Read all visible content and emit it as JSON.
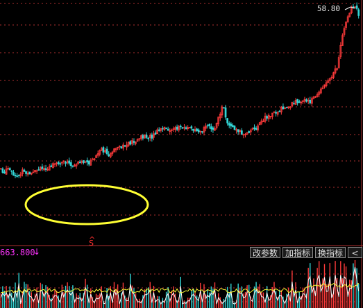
{
  "toolbar": {
    "volume_value": "663.800",
    "volume_indicator": "↓",
    "btn_params": "改参数",
    "btn_add_indicator": "加指标",
    "btn_switch_indicator": "换指标",
    "btn_more": "<"
  },
  "markers": {
    "high_price": "58.80",
    "signal_label": "S"
  },
  "colors": {
    "background": "#000000",
    "up_candle": "#ff3b3b",
    "down_candle": "#33d6d6",
    "grid": "#b03030",
    "highlight_ellipse": "#ffff33",
    "volume_ma_1": "#ffffff",
    "volume_ma_2": "#ffff33",
    "volume_label": "#ff33ff"
  },
  "chart_data": {
    "type": "candlestick",
    "price_max": 58.8,
    "annotation": "yellow ellipse highlighting consolidation base before breakout",
    "price_path": [
      [
        0,
        0.7
      ],
      [
        0.01,
        0.72
      ],
      [
        0.02,
        0.7
      ],
      [
        0.04,
        0.74
      ],
      [
        0.06,
        0.71
      ],
      [
        0.08,
        0.73
      ],
      [
        0.1,
        0.71
      ],
      [
        0.12,
        0.7
      ],
      [
        0.14,
        0.69
      ],
      [
        0.16,
        0.68
      ],
      [
        0.18,
        0.67
      ],
      [
        0.2,
        0.69
      ],
      [
        0.22,
        0.67
      ],
      [
        0.24,
        0.68
      ],
      [
        0.26,
        0.66
      ],
      [
        0.28,
        0.62
      ],
      [
        0.3,
        0.64
      ],
      [
        0.32,
        0.62
      ],
      [
        0.34,
        0.61
      ],
      [
        0.36,
        0.59
      ],
      [
        0.38,
        0.58
      ],
      [
        0.4,
        0.56
      ],
      [
        0.42,
        0.57
      ],
      [
        0.44,
        0.54
      ],
      [
        0.46,
        0.53
      ],
      [
        0.48,
        0.54
      ],
      [
        0.5,
        0.52
      ],
      [
        0.52,
        0.53
      ],
      [
        0.54,
        0.53
      ],
      [
        0.56,
        0.54
      ],
      [
        0.58,
        0.52
      ],
      [
        0.6,
        0.53
      ],
      [
        0.62,
        0.43
      ],
      [
        0.63,
        0.49
      ],
      [
        0.64,
        0.52
      ],
      [
        0.66,
        0.53
      ],
      [
        0.68,
        0.56
      ],
      [
        0.7,
        0.54
      ],
      [
        0.72,
        0.52
      ],
      [
        0.74,
        0.48
      ],
      [
        0.76,
        0.47
      ],
      [
        0.78,
        0.45
      ],
      [
        0.8,
        0.44
      ],
      [
        0.82,
        0.42
      ],
      [
        0.84,
        0.41
      ],
      [
        0.86,
        0.42
      ],
      [
        0.88,
        0.39
      ],
      [
        0.9,
        0.36
      ],
      [
        0.92,
        0.32
      ],
      [
        0.94,
        0.27
      ],
      [
        0.95,
        0.18
      ],
      [
        0.96,
        0.1
      ],
      [
        0.97,
        0.05
      ],
      [
        0.98,
        0.02
      ],
      [
        0.99,
        0.01
      ],
      [
        1.0,
        0.05
      ]
    ]
  }
}
